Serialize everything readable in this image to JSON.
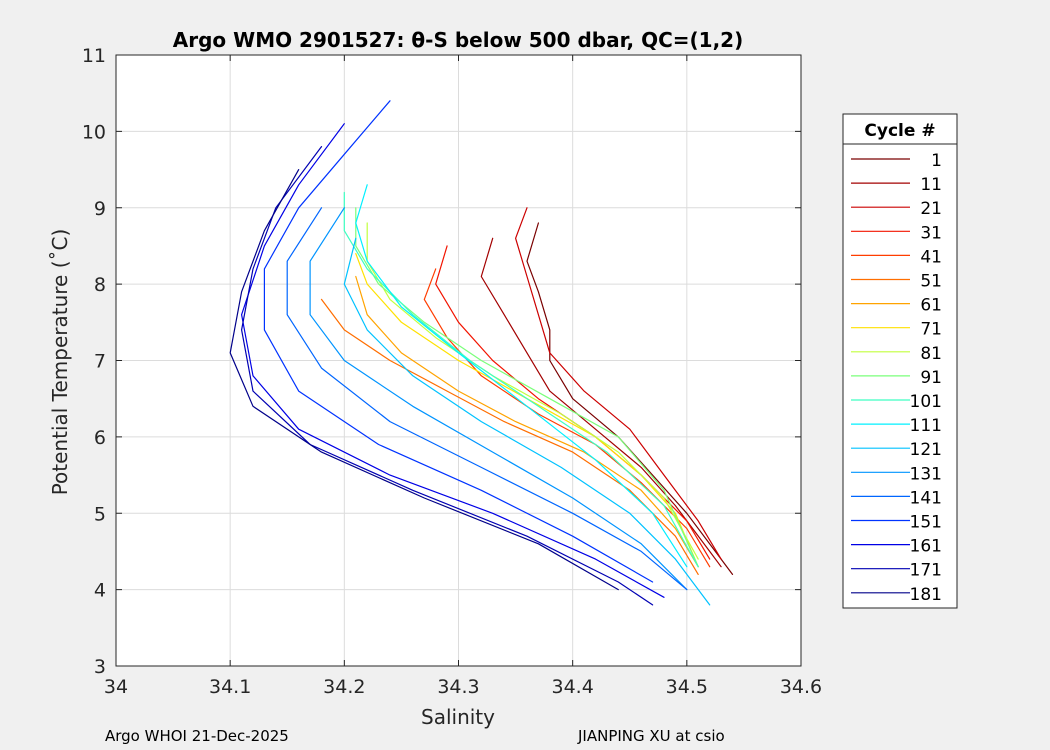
{
  "chart_data": {
    "type": "line",
    "title": "Argo WMO 2901527: θ-S below 500 dbar,  QC=(1,2)",
    "xlabel": "Salinity",
    "ylabel": "Potential Temperature (˚C)",
    "xlim": [
      34.0,
      34.6
    ],
    "ylim": [
      3,
      11
    ],
    "xticks": [
      34.0,
      34.1,
      34.2,
      34.3,
      34.4,
      34.5,
      34.6
    ],
    "xtick_labels": [
      "34",
      "34.1",
      "34.2",
      "34.3",
      "34.4",
      "34.5",
      "34.6"
    ],
    "yticks": [
      3,
      4,
      5,
      6,
      7,
      8,
      9,
      10,
      11
    ],
    "ytick_labels": [
      "3",
      "4",
      "5",
      "6",
      "7",
      "8",
      "9",
      "10",
      "11"
    ],
    "grid": true,
    "legend": {
      "title": "Cycle #",
      "placement": "outside-right",
      "entries": [
        {
          "label": "1",
          "color": "#7a0000"
        },
        {
          "label": "11",
          "color": "#a30000"
        },
        {
          "label": "21",
          "color": "#cc0000"
        },
        {
          "label": "31",
          "color": "#f21400"
        },
        {
          "label": "41",
          "color": "#ff3d00"
        },
        {
          "label": "51",
          "color": "#ff6e00"
        },
        {
          "label": "61",
          "color": "#ffa300"
        },
        {
          "label": "71",
          "color": "#ffe100"
        },
        {
          "label": "81",
          "color": "#c2ff3d"
        },
        {
          "label": "91",
          "color": "#7aff7a"
        },
        {
          "label": "101",
          "color": "#3dffc2"
        },
        {
          "label": "111",
          "color": "#00f0ff"
        },
        {
          "label": "121",
          "color": "#00c2ff"
        },
        {
          "label": "131",
          "color": "#0094ff"
        },
        {
          "label": "141",
          "color": "#0066ff"
        },
        {
          "label": "151",
          "color": "#0033ff"
        },
        {
          "label": "161",
          "color": "#0000e6"
        },
        {
          "label": "171",
          "color": "#0000b3"
        },
        {
          "label": "181",
          "color": "#00008a"
        }
      ]
    },
    "series": [
      {
        "name": "1",
        "color": "#7a0000",
        "points": [
          [
            34.37,
            8.8
          ],
          [
            34.36,
            8.3
          ],
          [
            34.37,
            7.9
          ],
          [
            34.38,
            7.4
          ],
          [
            34.38,
            7.0
          ],
          [
            34.4,
            6.5
          ],
          [
            34.44,
            6.0
          ],
          [
            34.47,
            5.5
          ],
          [
            34.5,
            5.0
          ],
          [
            34.53,
            4.4
          ],
          [
            34.54,
            4.2
          ]
        ]
      },
      {
        "name": "11",
        "color": "#a30000",
        "points": [
          [
            34.33,
            8.6
          ],
          [
            34.32,
            8.1
          ],
          [
            34.34,
            7.6
          ],
          [
            34.36,
            7.1
          ],
          [
            34.38,
            6.6
          ],
          [
            34.42,
            6.1
          ],
          [
            34.46,
            5.6
          ],
          [
            34.49,
            5.1
          ],
          [
            34.52,
            4.5
          ],
          [
            34.53,
            4.3
          ]
        ]
      },
      {
        "name": "21",
        "color": "#cc0000",
        "points": [
          [
            34.36,
            9.0
          ],
          [
            34.35,
            8.6
          ],
          [
            34.36,
            8.1
          ],
          [
            34.37,
            7.6
          ],
          [
            34.38,
            7.1
          ],
          [
            34.41,
            6.6
          ],
          [
            34.45,
            6.1
          ],
          [
            34.48,
            5.5
          ],
          [
            34.51,
            4.9
          ],
          [
            34.53,
            4.4
          ]
        ]
      },
      {
        "name": "31",
        "color": "#f21400",
        "points": [
          [
            34.29,
            8.5
          ],
          [
            34.28,
            8.0
          ],
          [
            34.3,
            7.5
          ],
          [
            34.33,
            7.0
          ],
          [
            34.37,
            6.5
          ],
          [
            34.42,
            6.0
          ],
          [
            34.46,
            5.5
          ],
          [
            34.5,
            4.9
          ],
          [
            34.52,
            4.4
          ]
        ]
      },
      {
        "name": "41",
        "color": "#ff3d00",
        "points": [
          [
            34.28,
            8.2
          ],
          [
            34.27,
            7.8
          ],
          [
            34.29,
            7.3
          ],
          [
            34.32,
            6.8
          ],
          [
            34.37,
            6.3
          ],
          [
            34.42,
            5.9
          ],
          [
            34.46,
            5.4
          ],
          [
            34.5,
            4.8
          ],
          [
            34.52,
            4.3
          ]
        ]
      },
      {
        "name": "51",
        "color": "#ff6e00",
        "points": [
          [
            34.18,
            7.8
          ],
          [
            34.2,
            7.4
          ],
          [
            34.24,
            7.0
          ],
          [
            34.29,
            6.6
          ],
          [
            34.34,
            6.2
          ],
          [
            34.4,
            5.8
          ],
          [
            34.45,
            5.3
          ],
          [
            34.49,
            4.7
          ],
          [
            34.51,
            4.2
          ]
        ]
      },
      {
        "name": "61",
        "color": "#ffa300",
        "points": [
          [
            34.21,
            8.1
          ],
          [
            34.22,
            7.6
          ],
          [
            34.25,
            7.1
          ],
          [
            34.3,
            6.6
          ],
          [
            34.35,
            6.2
          ],
          [
            34.41,
            5.8
          ],
          [
            34.46,
            5.3
          ],
          [
            34.49,
            4.8
          ],
          [
            34.51,
            4.3
          ]
        ]
      },
      {
        "name": "71",
        "color": "#ffe100",
        "points": [
          [
            34.21,
            8.4
          ],
          [
            34.22,
            8.0
          ],
          [
            34.25,
            7.5
          ],
          [
            34.3,
            7.0
          ],
          [
            34.36,
            6.5
          ],
          [
            34.42,
            6.0
          ],
          [
            34.46,
            5.5
          ],
          [
            34.49,
            5.0
          ],
          [
            34.51,
            4.3
          ]
        ]
      },
      {
        "name": "81",
        "color": "#c2ff3d",
        "points": [
          [
            34.22,
            8.8
          ],
          [
            34.22,
            8.3
          ],
          [
            34.24,
            7.8
          ],
          [
            34.28,
            7.3
          ],
          [
            34.33,
            6.8
          ],
          [
            34.39,
            6.3
          ],
          [
            34.44,
            5.8
          ],
          [
            34.48,
            5.2
          ],
          [
            34.51,
            4.4
          ]
        ]
      },
      {
        "name": "91",
        "color": "#7aff7a",
        "points": [
          [
            34.21,
            9.0
          ],
          [
            34.21,
            8.5
          ],
          [
            34.23,
            8.0
          ],
          [
            34.27,
            7.5
          ],
          [
            34.32,
            7.0
          ],
          [
            34.38,
            6.5
          ],
          [
            34.44,
            6.0
          ],
          [
            34.48,
            5.3
          ],
          [
            34.51,
            4.3
          ]
        ]
      },
      {
        "name": "101",
        "color": "#3dffc2",
        "points": [
          [
            34.2,
            9.2
          ],
          [
            34.2,
            8.7
          ],
          [
            34.22,
            8.2
          ],
          [
            34.26,
            7.6
          ],
          [
            34.31,
            7.0
          ],
          [
            34.37,
            6.4
          ],
          [
            34.43,
            5.8
          ],
          [
            34.48,
            5.1
          ],
          [
            34.51,
            4.3
          ]
        ]
      },
      {
        "name": "111",
        "color": "#00f0ff",
        "points": [
          [
            34.22,
            9.3
          ],
          [
            34.21,
            8.8
          ],
          [
            34.22,
            8.3
          ],
          [
            34.25,
            7.7
          ],
          [
            34.3,
            7.1
          ],
          [
            34.36,
            6.4
          ],
          [
            34.42,
            5.7
          ],
          [
            34.47,
            5.0
          ],
          [
            34.5,
            4.3
          ]
        ]
      },
      {
        "name": "121",
        "color": "#00c2ff",
        "points": [
          [
            34.21,
            8.6
          ],
          [
            34.2,
            8.0
          ],
          [
            34.22,
            7.4
          ],
          [
            34.26,
            6.8
          ],
          [
            34.32,
            6.2
          ],
          [
            34.39,
            5.6
          ],
          [
            34.45,
            5.0
          ],
          [
            34.49,
            4.4
          ],
          [
            34.52,
            3.8
          ]
        ]
      },
      {
        "name": "131",
        "color": "#0094ff",
        "points": [
          [
            34.2,
            9.0
          ],
          [
            34.17,
            8.3
          ],
          [
            34.17,
            7.6
          ],
          [
            34.2,
            7.0
          ],
          [
            34.26,
            6.4
          ],
          [
            34.33,
            5.8
          ],
          [
            34.4,
            5.2
          ],
          [
            34.46,
            4.6
          ],
          [
            34.5,
            4.0
          ]
        ]
      },
      {
        "name": "141",
        "color": "#0066ff",
        "points": [
          [
            34.18,
            9.0
          ],
          [
            34.15,
            8.3
          ],
          [
            34.15,
            7.6
          ],
          [
            34.18,
            6.9
          ],
          [
            34.24,
            6.2
          ],
          [
            34.32,
            5.6
          ],
          [
            34.4,
            5.0
          ],
          [
            34.46,
            4.5
          ],
          [
            34.5,
            4.0
          ]
        ]
      },
      {
        "name": "151",
        "color": "#0033ff",
        "points": [
          [
            34.24,
            10.4
          ],
          [
            34.2,
            9.7
          ],
          [
            34.16,
            9.0
          ],
          [
            34.13,
            8.2
          ],
          [
            34.13,
            7.4
          ],
          [
            34.16,
            6.6
          ],
          [
            34.23,
            5.9
          ],
          [
            34.32,
            5.3
          ],
          [
            34.4,
            4.7
          ],
          [
            34.47,
            4.1
          ]
        ]
      },
      {
        "name": "161",
        "color": "#0000e6",
        "points": [
          [
            34.2,
            10.1
          ],
          [
            34.16,
            9.3
          ],
          [
            34.13,
            8.5
          ],
          [
            34.11,
            7.6
          ],
          [
            34.12,
            6.8
          ],
          [
            34.16,
            6.1
          ],
          [
            34.24,
            5.5
          ],
          [
            34.33,
            5.0
          ],
          [
            34.42,
            4.4
          ],
          [
            34.48,
            3.9
          ]
        ]
      },
      {
        "name": "171",
        "color": "#0000b3",
        "points": [
          [
            34.18,
            9.8
          ],
          [
            34.14,
            9.0
          ],
          [
            34.12,
            8.2
          ],
          [
            34.11,
            7.4
          ],
          [
            34.12,
            6.6
          ],
          [
            34.17,
            5.9
          ],
          [
            34.26,
            5.3
          ],
          [
            34.36,
            4.7
          ],
          [
            34.44,
            4.1
          ],
          [
            34.47,
            3.8
          ]
        ]
      },
      {
        "name": "181",
        "color": "#00008a",
        "points": [
          [
            34.16,
            9.5
          ],
          [
            34.13,
            8.7
          ],
          [
            34.11,
            7.9
          ],
          [
            34.1,
            7.1
          ],
          [
            34.12,
            6.4
          ],
          [
            34.18,
            5.8
          ],
          [
            34.27,
            5.2
          ],
          [
            34.37,
            4.6
          ],
          [
            34.44,
            4.0
          ]
        ]
      }
    ]
  },
  "footer": {
    "left": "Argo WHOI 21-Dec-2025",
    "right": "JIANPING XU at csio"
  }
}
